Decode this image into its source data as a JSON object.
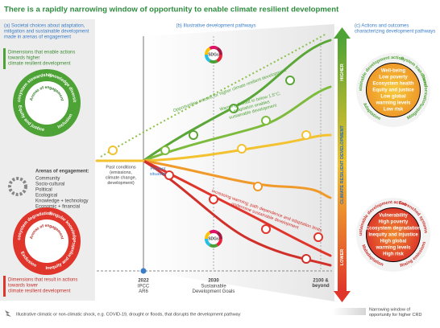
{
  "title": "There is a rapidly narrowing window of opportunity to enable climate resilient development",
  "panel_a": {
    "heading": [
      "(a) Societal choices about adaptation,",
      "mitigation and sustainable development",
      "made in arenas of engagement"
    ],
    "enable_label": [
      "Dimensions that enable actions",
      "towards higher",
      "climate resilient development"
    ],
    "upper_circle": {
      "center": "Arenas of engagement",
      "top": [
        "Ecosystem stewardship",
        "Knowledge diversity"
      ],
      "bottom": [
        "Equity and justice",
        "Inclusion"
      ]
    },
    "arenas_heading": "Arenas of engagement:",
    "arenas": [
      "Community",
      "Socio-cultural",
      "Political",
      "Ecological",
      "Knowledge + technology",
      "Economic + financial"
    ],
    "lower_circle": {
      "center": "Arenas of engagement",
      "top": [
        "Ecosystem degradation",
        "Singular knowledge"
      ],
      "bottom": [
        "Exclusion",
        "Inequity and injustice"
      ]
    },
    "lower_label": [
      "Dimensions that result in actions",
      "towards lower",
      "climate resilient development"
    ]
  },
  "panel_b": {
    "heading": "(b) Illustrative development pathways",
    "sdgs_top": "SDGs",
    "sdgs_bottom": "SDGs",
    "missed": "Opportunities missed for higher climate resilient development",
    "warming_limited": [
      "Warming limited to below 1.5°C;",
      "adaptation enables",
      "sustainable development"
    ],
    "increasing_warming": [
      "Increasing warming; path dependence and adaptation limits",
      "undermine sustainable development"
    ],
    "past": [
      "Past conditions",
      "(emissions,",
      "climate change,",
      "development)"
    ],
    "present": [
      "Present",
      "situation"
    ],
    "axis": [
      {
        "year": "2022",
        "label": [
          "IPCC",
          "AR6"
        ]
      },
      {
        "year": "2030",
        "label": [
          "Sustainable",
          "Development Goals"
        ]
      },
      {
        "year": "",
        "label": [
          "2100 &",
          "beyond"
        ]
      }
    ]
  },
  "panel_c": {
    "heading": [
      "(c) Actions and outcomes",
      "characterizing development pathways"
    ],
    "higher": "HIGHER",
    "lower": "LOWER",
    "axis_title": "CLIMATE RESILIENT DEVELOPMENT",
    "upper_circle": {
      "top": [
        "Sustainable development action",
        "System transitions"
      ],
      "side": "Transformation",
      "bottom": [
        "Adaptation",
        "Mitigation"
      ],
      "outcomes": [
        "Well-being",
        "Low poverty",
        "Ecosystem health",
        "Equity and justice",
        "Low global",
        "warming levels",
        "Low risk"
      ]
    },
    "lower_circle": {
      "top": [
        "Unsustainable development action",
        "Entrenched systems"
      ],
      "bottom": [
        "Maladaptation",
        "Rising emissions"
      ],
      "outcomes": [
        "Vulnerability",
        "High poverty",
        "Ecosystem degradation",
        "Inequity and injustice",
        "High global",
        "warming levels",
        "High risk"
      ]
    }
  },
  "footer": {
    "shock": "Illustrative climatic or non-climatic shock, e.g. COVID-19, drought or floods, that disrupts the development pathway",
    "window": [
      "Narrowing window of",
      "opportunity for higher CRD"
    ]
  }
}
